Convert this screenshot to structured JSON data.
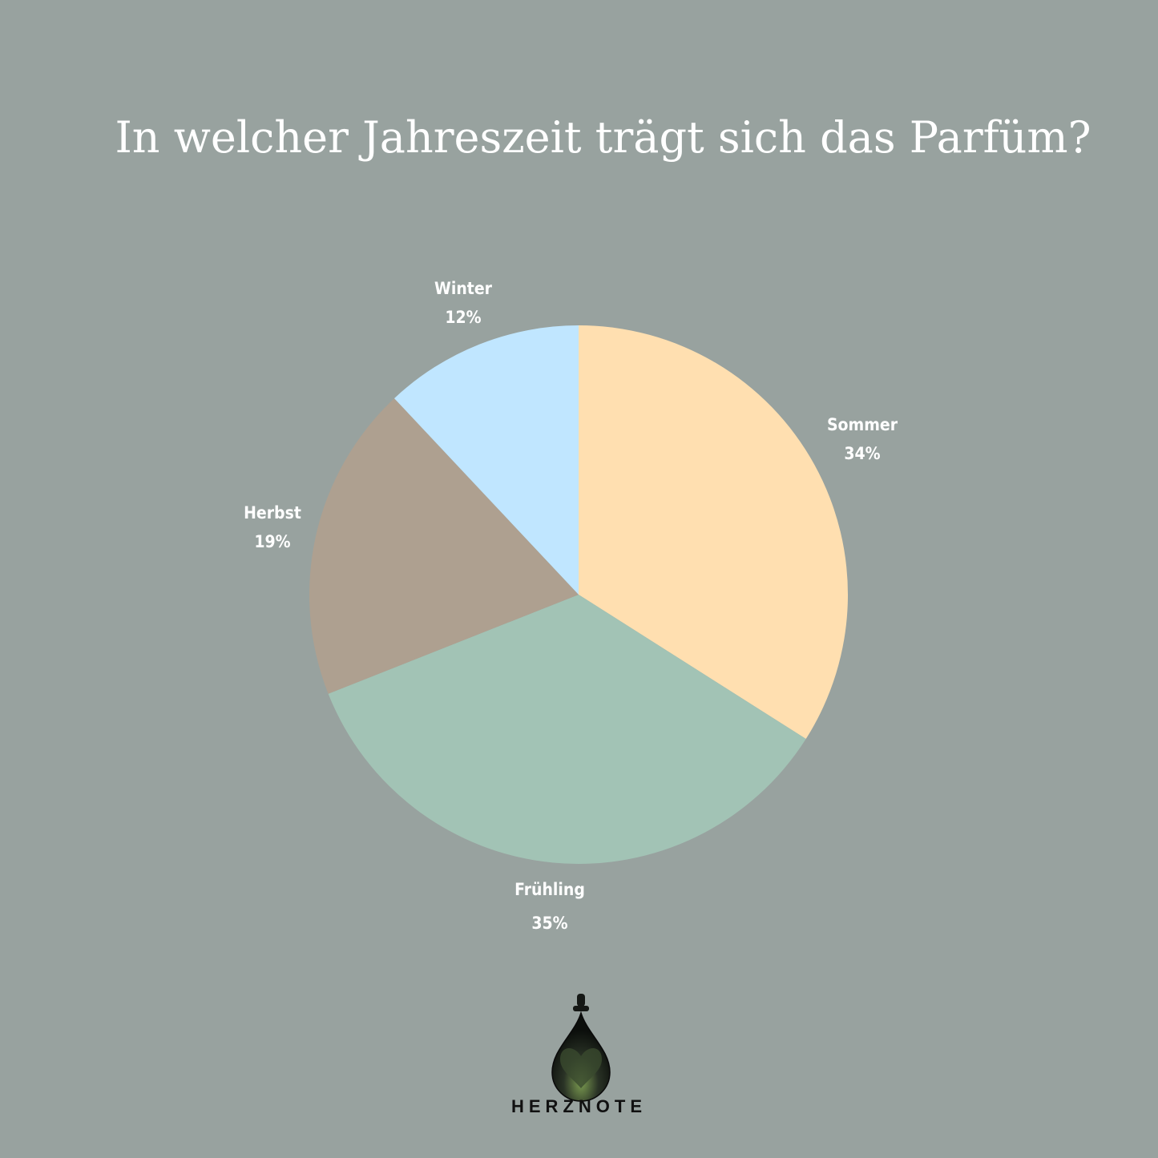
{
  "chart_data": {
    "type": "pie",
    "title": "In welcher Jahreszeit trägt sich das Parfüm?",
    "slices": [
      {
        "label": "Sommer",
        "value": 34,
        "display": "34%",
        "color": "#ffdfb0"
      },
      {
        "label": "Frühling",
        "value": 35,
        "display": "35%",
        "color": "#a2c3b5"
      },
      {
        "label": "Herbst",
        "value": 19,
        "display": "19%",
        "color": "#aea090"
      },
      {
        "label": "Winter",
        "value": 12,
        "display": "12%",
        "color": "#c0e6ff"
      }
    ],
    "start_angle": "top",
    "direction": "clockwise"
  },
  "background_color": "#98a29f",
  "brand": {
    "name": "HERZNOTE",
    "logo_icon": "perfume-drop-heart-icon"
  }
}
